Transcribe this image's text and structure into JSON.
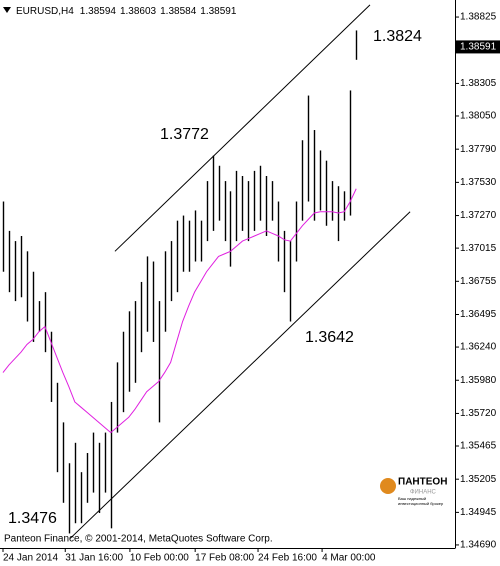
{
  "chart_data": {
    "type": "range_bar",
    "symbol": "EURUSD,H4",
    "quote": [
      1.38594,
      1.38603,
      1.38584,
      1.38591
    ],
    "footer": "Panteon Finance, © 2001-2014, MetaQuotes Software Corp.",
    "logo": {
      "name": "ПАНТЕОН",
      "sub": "ФИНАНС",
      "tagline": [
        "Ваш надежный",
        "инвестиционный брокер"
      ]
    },
    "bar_color": "#000000",
    "high": [
      1.3738,
      1.3715,
      1.3707,
      1.3711,
      1.3699,
      1.3683,
      1.366,
      1.3667,
      1.3636,
      1.3596,
      1.3565,
      1.3533,
      1.3549,
      1.3526,
      1.3541,
      1.3557,
      1.3549,
      1.3557,
      1.3581,
      1.3612,
      1.3636,
      1.3652,
      1.366,
      1.3675,
      1.3695,
      1.3691,
      1.366,
      1.3699,
      1.3707,
      1.3723,
      1.3727,
      1.3723,
      1.3731,
      1.3723,
      1.3754,
      1.3774,
      1.3766,
      1.3754,
      1.3746,
      1.3762,
      1.3758,
      1.3754,
      1.3762,
      1.3766,
      1.3758,
      1.3754,
      1.3738,
      1.3715,
      1.3707,
      1.3738,
      1.3786,
      1.3821,
      1.3794,
      1.3778,
      1.377,
      1.3754,
      1.375,
      1.3746,
      1.3825,
      1.3872
    ],
    "low": [
      1.3683,
      1.3667,
      1.366,
      1.3663,
      1.3644,
      1.3628,
      1.3636,
      1.362,
      1.3581,
      1.3526,
      1.3502,
      1.3478,
      1.3486,
      1.3486,
      1.3502,
      1.351,
      1.3494,
      1.351,
      1.3482,
      1.3557,
      1.3573,
      1.3589,
      1.3596,
      1.362,
      1.3636,
      1.3628,
      1.3565,
      1.3636,
      1.366,
      1.3667,
      1.3683,
      1.3683,
      1.3691,
      1.3691,
      1.3707,
      1.3715,
      1.3723,
      1.3707,
      1.3687,
      1.3707,
      1.3715,
      1.3707,
      1.3715,
      1.3723,
      1.3711,
      1.3723,
      1.3691,
      1.3667,
      1.3644,
      1.3691,
      1.3723,
      1.3738,
      1.3723,
      1.3731,
      1.3719,
      1.3723,
      1.3707,
      1.3723,
      1.3727,
      1.3849
    ],
    "ma": {
      "color": "#e020e0",
      "values": [
        1.3604,
        1.361,
        1.3615,
        1.362,
        1.3626,
        1.363,
        1.3636,
        1.364,
        1.3628,
        1.3616,
        1.3604,
        1.3593,
        1.3581,
        1.3577,
        1.3573,
        1.3569,
        1.3565,
        1.3561,
        1.3557,
        1.3561,
        1.3565,
        1.3569,
        1.3575,
        1.3582,
        1.3589,
        1.3593,
        1.3597,
        1.3604,
        1.3612,
        1.3628,
        1.3644,
        1.3656,
        1.3667,
        1.3675,
        1.3683,
        1.3689,
        1.3695,
        1.3697,
        1.3699,
        1.3703,
        1.3707,
        1.3709,
        1.3711,
        1.3713,
        1.3715,
        1.3713,
        1.3711,
        1.3708,
        1.3707,
        1.3713,
        1.3719,
        1.3724,
        1.3729,
        1.373,
        1.373,
        1.373,
        1.3729,
        1.373,
        1.3738,
        1.3748
      ]
    },
    "trendlines": [
      {
        "x": [
          11.2,
          68.0
        ],
        "y": [
          1.3474,
          1.373
        ]
      },
      {
        "x": [
          18.7,
          61.3
        ],
        "y": [
          1.3699,
          1.3892
        ]
      }
    ],
    "annotations": [
      "1.3824",
      "1.3772",
      "1.3642",
      "1.3476"
    ],
    "current_price": 1.38591,
    "xlim": [
      -0.5,
      75.5
    ],
    "ylim": [
      1.34666,
      1.38935
    ],
    "xticks": [
      {
        "value": 0,
        "label": "24 Jan 2014"
      },
      {
        "value": 10.4,
        "label": "31 Jan 16:00"
      },
      {
        "value": 21.2,
        "label": "10 Feb 00:00"
      },
      {
        "value": 32.1,
        "label": "17 Feb 08:00"
      },
      {
        "value": 42.6,
        "label": "24 Feb 16:00"
      },
      {
        "value": 53.3,
        "label": "4 Mar 00:00"
      }
    ],
    "yticks": [
      1.38825,
      1.38305,
      {
        "value": 1.3805,
        "label": "1.38050"
      },
      {
        "value": 1.3779,
        "label": "1.37790"
      },
      {
        "value": 1.3753,
        "label": "1.37530"
      },
      {
        "value": 1.3727,
        "label": "1.37270"
      },
      1.37015,
      1.36755,
      1.36495,
      {
        "value": 1.3624,
        "label": "1.36240"
      },
      {
        "value": 1.3598,
        "label": "1.35980"
      },
      {
        "value": 1.3572,
        "label": "1.35720"
      },
      1.35465,
      1.35205,
      1.34945,
      {
        "value": 1.3469,
        "label": "1.34690"
      }
    ]
  }
}
